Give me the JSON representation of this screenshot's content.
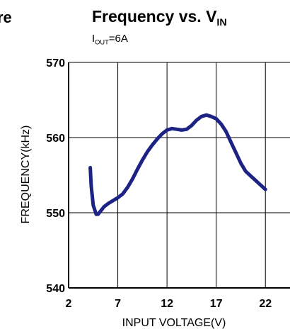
{
  "page": {
    "left_fragment": "re"
  },
  "chart_data": {
    "type": "line",
    "title_main": "Frequency vs. V",
    "title_sub": "IN",
    "subtitle_main": "I",
    "subtitle_sub": "OUT",
    "subtitle_rest": "=6A",
    "xlabel": "INPUT VOLTAGE(V)",
    "ylabel": "FREQUENCY(kHz)",
    "xlim": [
      2,
      24.5
    ],
    "ylim": [
      540,
      570
    ],
    "xticks": [
      2,
      7,
      12,
      17,
      22
    ],
    "yticks": [
      540,
      550,
      560,
      570
    ],
    "grid": true,
    "line_color": "#1c2385",
    "series": [
      {
        "x": [
          4.2,
          4.3,
          4.5,
          4.8,
          5.0,
          5.3,
          5.6,
          6.0,
          6.5,
          7.0,
          7.5,
          8.0,
          8.5,
          9.0,
          9.5,
          10.0,
          10.5,
          11.0,
          11.5,
          12.0,
          12.5,
          13.0,
          13.5,
          14.0,
          14.5,
          15.0,
          15.5,
          16.0,
          16.5,
          17.0,
          17.5,
          18.0,
          18.5,
          19.0,
          19.5,
          20.0,
          20.5,
          21.0,
          21.5,
          22.0
        ],
        "y": [
          556.0,
          553.5,
          551.0,
          549.8,
          549.8,
          550.3,
          550.8,
          551.2,
          551.6,
          552.0,
          552.5,
          553.4,
          554.5,
          555.8,
          557.0,
          558.1,
          559.0,
          559.8,
          560.5,
          561.0,
          561.2,
          561.1,
          561.0,
          561.1,
          561.6,
          562.3,
          562.8,
          563.0,
          562.8,
          562.5,
          561.8,
          560.8,
          559.4,
          558.0,
          556.6,
          555.5,
          554.9,
          554.3,
          553.7,
          553.1
        ]
      }
    ]
  }
}
